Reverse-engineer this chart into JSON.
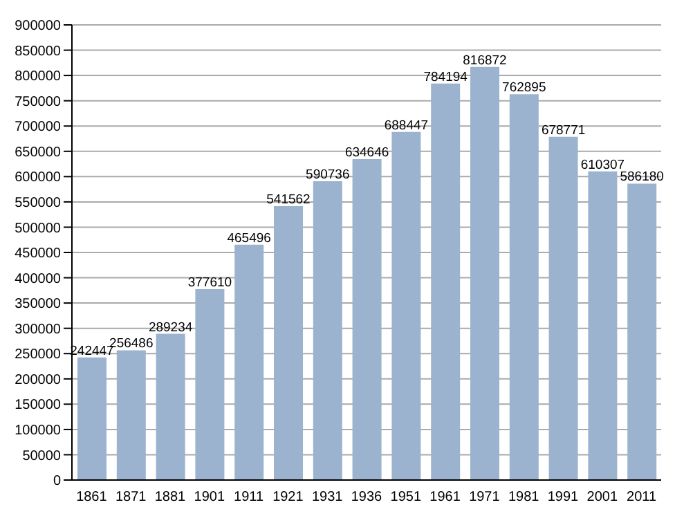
{
  "chart_data": {
    "type": "bar",
    "categories": [
      "1861",
      "1871",
      "1881",
      "1901",
      "1911",
      "1921",
      "1931",
      "1936",
      "1951",
      "1961",
      "1971",
      "1981",
      "1991",
      "2001",
      "2011"
    ],
    "values": [
      242447,
      256486,
      289234,
      377610,
      465496,
      541562,
      590736,
      634646,
      688447,
      784194,
      816872,
      762895,
      678771,
      610307,
      586180
    ],
    "color": "#9bb3cf",
    "ylim": [
      0,
      900000
    ],
    "yticks": [
      0,
      50000,
      100000,
      150000,
      200000,
      250000,
      300000,
      350000,
      400000,
      450000,
      500000,
      550000,
      600000,
      650000,
      700000,
      750000,
      800000,
      850000,
      900000
    ],
    "grid": "y",
    "data_labels": true
  }
}
